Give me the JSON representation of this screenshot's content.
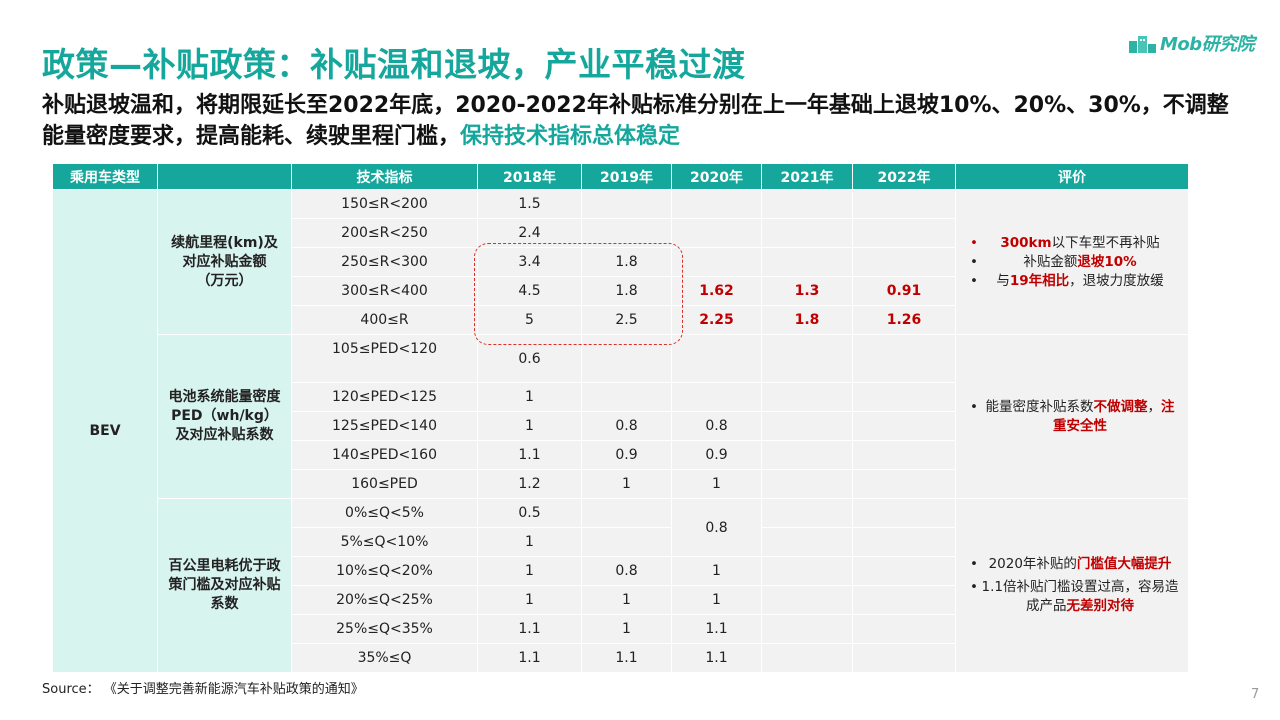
{
  "title": "政策—补贴政策：补贴温和退坡，产业平稳过渡",
  "brand": {
    "logo_text": "Mob研究院",
    "color": "#2db3a6"
  },
  "subtitle": {
    "text": "补贴退坡温和，将期限延长至2022年底，2020-2022年补贴标准分别在上一年基础上退坡10%、20%、30%，不调整能量密度要求，提高能耗、续驶里程门槛，",
    "highlight": "保持技术指标总体稳定"
  },
  "colors": {
    "accent": "#16a79c",
    "category_bg": "#d8f4ee",
    "cell_bg": "#f2f2f2",
    "emphasis": "#c00000"
  },
  "table": {
    "headers": [
      "乘用车类型",
      "",
      "技术指标",
      "2018年",
      "2019年",
      "2020年",
      "2021年",
      "2022年",
      "评价"
    ],
    "vehicle_type": "BEV",
    "groups": {
      "range": {
        "name": "续航里程(km)及对应补贴金额（万元）",
        "rows": [
          [
            "150≤R<200",
            "1.5",
            "",
            "",
            "",
            ""
          ],
          [
            "200≤R<250",
            "2.4",
            "",
            "",
            "",
            ""
          ],
          [
            "250≤R<300",
            "3.4",
            "1.8",
            "",
            "",
            ""
          ],
          [
            "300≤R<400",
            "4.5",
            "1.8",
            "1.62",
            "1.3",
            "0.91"
          ],
          [
            "400≤R",
            "5",
            "2.5",
            "2.25",
            "1.8",
            "1.26"
          ]
        ],
        "eval": [
          "300km",
          "以下车型不再补贴",
          "补贴金额",
          "退坡10%",
          "与",
          "19年相比",
          "，退坡力度放缓"
        ]
      },
      "density": {
        "name": "电池系统能量密度PED（wh/kg）及对应补贴系数",
        "rows": [
          [
            "105≤PED<120",
            "0.6",
            "",
            "",
            "",
            ""
          ],
          [
            "120≤PED<125",
            "1",
            "",
            "",
            "",
            ""
          ],
          [
            "125≤PED<140",
            "1",
            "0.8",
            "0.8",
            "",
            ""
          ],
          [
            "140≤PED<160",
            "1.1",
            "0.9",
            "0.9",
            "",
            ""
          ],
          [
            "160≤PED",
            "1.2",
            "1",
            "1",
            "",
            ""
          ]
        ],
        "eval": [
          "能量密度补贴系数",
          "不做调整",
          "，",
          "注重安全性"
        ]
      },
      "consumption": {
        "name": "百公里电耗优于政策门槛及对应补贴系数",
        "rows": [
          [
            "0%≤Q<5%",
            "0.5",
            "",
            "0.8",
            "",
            ""
          ],
          [
            "5%≤Q<10%",
            "1",
            "",
            "",
            "",
            ""
          ],
          [
            "10%≤Q<20%",
            "1",
            "0.8",
            "1",
            "",
            ""
          ],
          [
            "20%≤Q<25%",
            "1",
            "1",
            "1",
            "",
            ""
          ],
          [
            "25%≤Q<35%",
            "1.1",
            "1",
            "1.1",
            "",
            ""
          ],
          [
            "35%≤Q",
            "1.1",
            "1.1",
            "1.1",
            "",
            ""
          ]
        ],
        "eval": [
          "2020年补贴的",
          "门槛值大幅提升",
          "1.1倍补贴门槛设置过高，容易造成产品",
          "无差别对待"
        ]
      }
    }
  },
  "source": "Source：   《关于调整完善新能源汽车补贴政策的通知》",
  "page_number": "7"
}
